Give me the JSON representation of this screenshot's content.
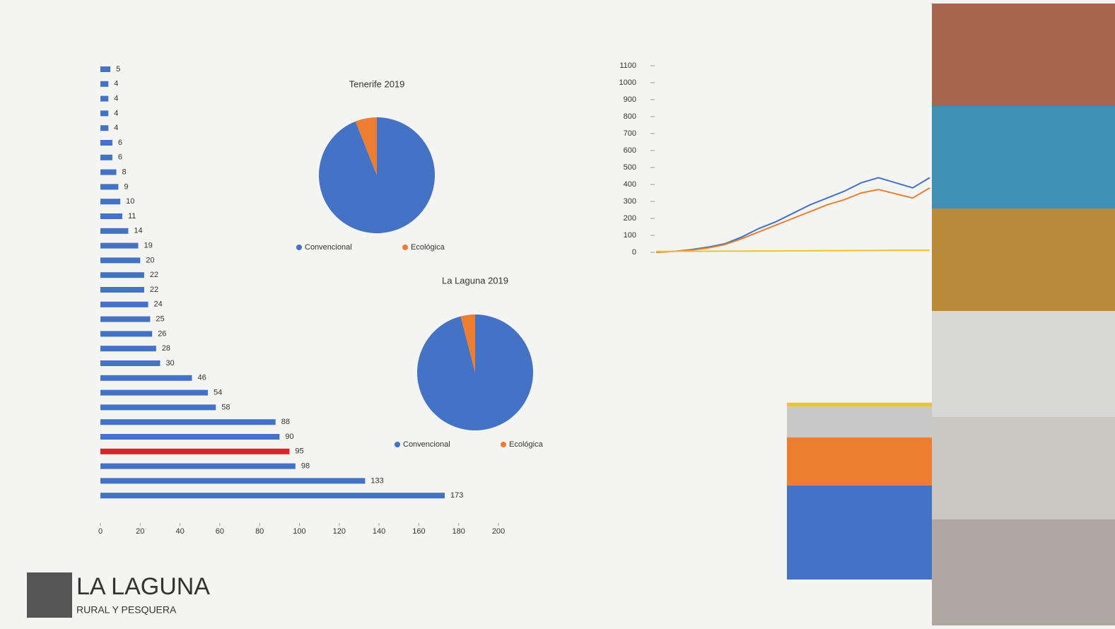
{
  "logo": {
    "title": "LA LAGUNA",
    "subtitle": "RURAL Y PESQUERA"
  },
  "chart_data": [
    {
      "type": "hbar",
      "values": [
        5,
        4,
        4,
        4,
        4,
        6,
        6,
        8,
        9,
        10,
        11,
        14,
        19,
        20,
        22,
        22,
        24,
        25,
        26,
        28,
        30,
        46,
        54,
        58,
        88,
        90,
        95,
        98,
        133,
        173
      ],
      "colors": [
        "#4472c4",
        "#4472c4",
        "#4472c4",
        "#4472c4",
        "#4472c4",
        "#4472c4",
        "#4472c4",
        "#4472c4",
        "#4472c4",
        "#4472c4",
        "#4472c4",
        "#4472c4",
        "#4472c4",
        "#4472c4",
        "#4472c4",
        "#4472c4",
        "#4472c4",
        "#4472c4",
        "#4472c4",
        "#4472c4",
        "#4472c4",
        "#4472c4",
        "#4472c4",
        "#4472c4",
        "#4472c4",
        "#4472c4",
        "#e0202a",
        "#4472c4",
        "#4472c4",
        "#4472c4"
      ],
      "xlim": [
        0,
        200
      ],
      "xticks": [
        0,
        20,
        40,
        60,
        80,
        100,
        120,
        140,
        160,
        180,
        200
      ]
    },
    {
      "type": "pie",
      "title": "Tenerife 2019",
      "categories": [
        "Convencional",
        "Ecológica"
      ],
      "values": [
        94,
        6
      ],
      "colors": [
        "#4472c4",
        "#ed7d31"
      ]
    },
    {
      "type": "pie",
      "title": "La Laguna 2019",
      "categories": [
        "Convencional",
        "Ecológica"
      ],
      "values": [
        96,
        4
      ],
      "colors": [
        "#4472c4",
        "#ed7d31"
      ]
    },
    {
      "type": "line",
      "ylim": [
        0,
        1100
      ],
      "yticks": [
        0,
        100,
        200,
        300,
        400,
        500,
        600,
        700,
        800,
        900,
        1000,
        1100
      ],
      "series": [
        {
          "color": "#4472c4",
          "values": [
            0,
            5,
            15,
            30,
            50,
            90,
            140,
            180,
            230,
            280,
            320,
            360,
            410,
            440,
            410,
            380,
            440
          ]
        },
        {
          "color": "#ed7d31",
          "values": [
            0,
            5,
            12,
            25,
            45,
            80,
            120,
            160,
            200,
            240,
            280,
            310,
            350,
            370,
            345,
            320,
            380
          ]
        },
        {
          "color": "#f2c12e",
          "values": [
            5,
            5,
            6,
            6,
            7,
            7,
            8,
            8,
            9,
            9,
            10,
            10,
            11,
            11,
            12,
            12,
            12
          ]
        }
      ]
    },
    {
      "type": "stacked",
      "ylim": [
        0,
        100
      ],
      "series": [
        {
          "color": "#4472c4",
          "values": [
            49
          ]
        },
        {
          "color": "#ed7d31",
          "values": [
            25
          ]
        },
        {
          "color": "#c8c8c8",
          "values": [
            16
          ]
        },
        {
          "color": "#f2c12e",
          "values": [
            2
          ]
        }
      ]
    }
  ]
}
